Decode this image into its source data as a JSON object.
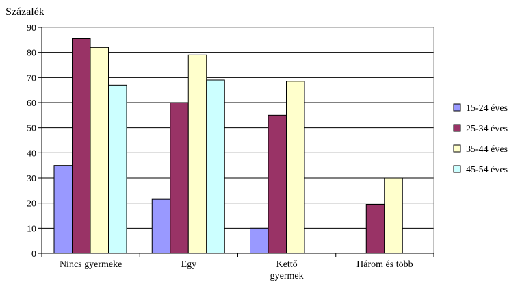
{
  "chart_data": {
    "type": "bar",
    "ylabel": "Százalék",
    "ylim": [
      0,
      90
    ],
    "yticks": [
      0,
      10,
      20,
      30,
      40,
      50,
      60,
      70,
      80,
      90
    ],
    "grid": true,
    "legend_position": "right",
    "categories": [
      [
        "Nincs gyermeke"
      ],
      [
        "Egy"
      ],
      [
        "Kettő",
        "gyermek"
      ],
      [
        "Három és több"
      ]
    ],
    "series": [
      {
        "name": "15-24 éves",
        "color": "#9999ff",
        "values": [
          35,
          21.5,
          10,
          0
        ]
      },
      {
        "name": "25-34 éves",
        "color": "#993366",
        "values": [
          85.5,
          60,
          55,
          19.5
        ]
      },
      {
        "name": "35-44 éves",
        "color": "#ffffcc",
        "values": [
          82,
          79,
          68.5,
          30
        ]
      },
      {
        "name": "45-54 éves",
        "color": "#ccffff",
        "values": [
          67,
          69,
          0,
          0
        ]
      }
    ]
  }
}
